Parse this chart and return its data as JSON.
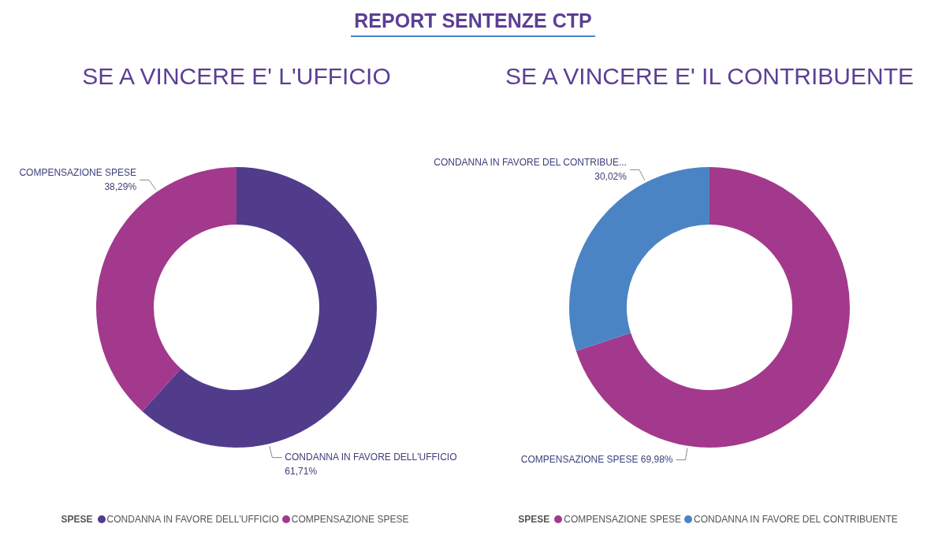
{
  "chart_data": [
    {
      "type": "other",
      "title": "REPORT SENTENZE CTP"
    },
    {
      "type": "donut",
      "title": "SE A VINCERE E' L'UFFICIO",
      "legend_title": "SPESE",
      "legend": "bottom",
      "categories": [
        "CONDANNA IN FAVORE DELL'UFFICIO",
        "COMPENSAZIONE SPESE"
      ],
      "values": [
        61.71,
        38.29
      ],
      "colors": [
        "#513c8c",
        "#a3398c"
      ],
      "value_labels": [
        "CONDANNA IN FAVORE DELL'UFFICIO\n61,71%",
        "COMPENSAZIONE SPESE\n38,29%"
      ]
    },
    {
      "type": "donut",
      "title": "SE A VINCERE E' IL CONTRIBUENTE",
      "legend_title": "SPESE",
      "legend": "bottom",
      "categories": [
        "COMPENSAZIONE SPESE",
        "CONDANNA IN FAVORE DEL CONTRIBUENTE"
      ],
      "values": [
        69.98,
        30.02
      ],
      "colors": [
        "#a3398c",
        "#4a84c4"
      ],
      "value_labels": [
        "COMPENSAZIONE SPESE 69,98%",
        "CONDANNA IN FAVORE DEL CONTRIBUE...\n30,02%"
      ]
    }
  ]
}
